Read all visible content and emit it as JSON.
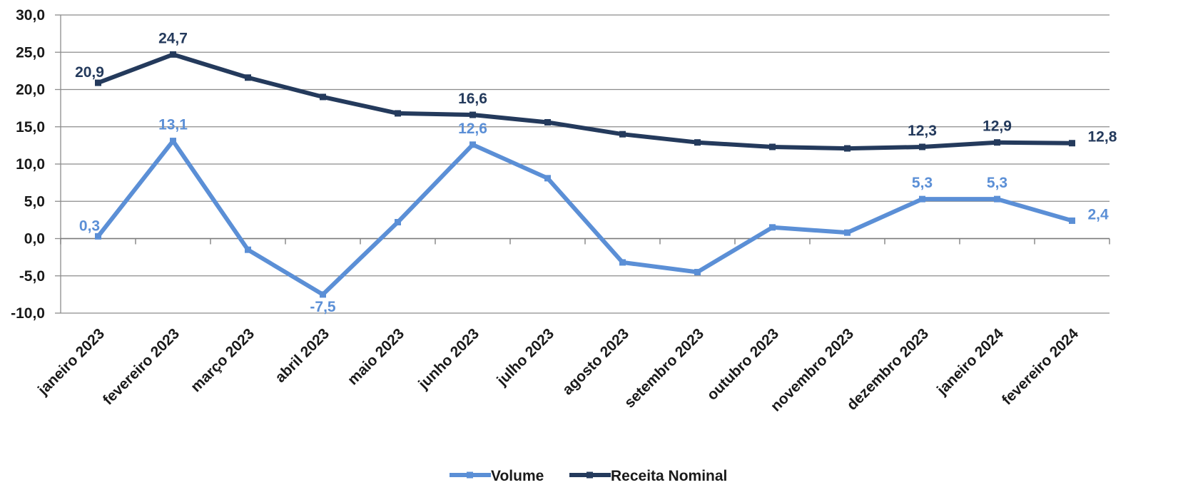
{
  "chart_data": {
    "type": "line",
    "categories": [
      "janeiro 2023",
      "fevereiro 2023",
      "março 2023",
      "abril 2023",
      "maio 2023",
      "junho 2023",
      "julho 2023",
      "agosto 2023",
      "setembro 2023",
      "outubro 2023",
      "novembro 2023",
      "dezembro 2023",
      "janeiro 2024",
      "fevereiro 2024"
    ],
    "series": [
      {
        "name": "Volume",
        "color": "#5B8FD6",
        "values": [
          0.3,
          13.1,
          -1.5,
          -7.5,
          2.2,
          12.6,
          8.1,
          -3.2,
          -4.5,
          1.5,
          0.8,
          5.3,
          5.3,
          2.4
        ],
        "labels": [
          "0,3",
          "13,1",
          "",
          "-7,5",
          "",
          "12,6",
          "",
          "",
          "",
          "",
          "",
          "5,3",
          "5,3",
          "2,4"
        ]
      },
      {
        "name": "Receita Nominal",
        "color": "#243A5C",
        "values": [
          20.9,
          24.7,
          21.6,
          19.0,
          16.8,
          16.6,
          15.6,
          14.0,
          12.9,
          12.3,
          12.1,
          12.3,
          12.9,
          12.8
        ],
        "labels": [
          "20,9",
          "24,7",
          "",
          "",
          "",
          "16,6",
          "",
          "",
          "",
          "",
          "",
          "12,3",
          "12,9",
          "12,8"
        ]
      }
    ],
    "ylim": [
      -10,
      30
    ],
    "yticks": [
      -10,
      -5,
      0,
      5,
      10,
      15,
      20,
      25,
      30
    ],
    "ytick_labels": [
      "-10,0",
      "-5,0",
      "0,0",
      "5,0",
      "10,0",
      "15,0",
      "20,0",
      "25,0",
      "30,0"
    ],
    "grid": true,
    "legend": "bottom",
    "title": "",
    "xlabel": "",
    "ylabel": ""
  }
}
